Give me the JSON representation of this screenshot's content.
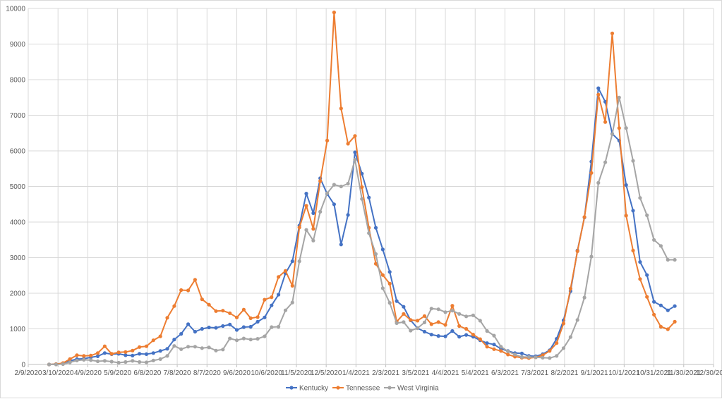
{
  "chart_data": {
    "type": "line",
    "title": "",
    "xlabel": "",
    "ylabel": "",
    "ylim": [
      0,
      10000
    ],
    "y_ticks": [
      0,
      1000,
      2000,
      3000,
      4000,
      5000,
      6000,
      7000,
      8000,
      9000,
      10000
    ],
    "x_ticks": [
      "2/9/2020",
      "3/10/2020",
      "4/9/2020",
      "5/9/2020",
      "6/8/2020",
      "7/8/2020",
      "8/7/2020",
      "9/6/2020",
      "10/6/2020",
      "11/5/2020",
      "12/5/2020",
      "1/4/2021",
      "2/3/2021",
      "3/5/2021",
      "4/4/2021",
      "5/4/2021",
      "6/3/2021",
      "7/3/2021",
      "8/2/2021",
      "9/1/2021",
      "10/1/2021",
      "10/31/2021",
      "11/30/2021",
      "12/30/2021"
    ],
    "xlim": [
      "2/9/2020",
      "12/30/2021"
    ],
    "grid": "vertical and horizontal",
    "legend_position": "bottom",
    "x_start": "3/1/2020",
    "x_step_days": 7,
    "series": [
      {
        "name": "Kentucky",
        "color": "#4472C4",
        "values": [
          0,
          10,
          30,
          100,
          150,
          160,
          200,
          230,
          320,
          290,
          300,
          260,
          250,
          300,
          290,
          320,
          380,
          440,
          700,
          860,
          1130,
          920,
          1000,
          1040,
          1030,
          1080,
          1120,
          970,
          1050,
          1060,
          1200,
          1320,
          1660,
          1960,
          2560,
          2900,
          3900,
          4800,
          4250,
          5230,
          4790,
          4500,
          3370,
          4200,
          5960,
          5360,
          4690,
          3840,
          3230,
          2600,
          1780,
          1620,
          1240,
          1020,
          920,
          840,
          800,
          790,
          940,
          780,
          830,
          780,
          680,
          600,
          560,
          440,
          380,
          320,
          310,
          240,
          230,
          290,
          400,
          720,
          1240,
          2060,
          3200,
          4130,
          5700,
          7760,
          7380,
          6480,
          6290,
          5040,
          4320,
          2880,
          2510,
          1760,
          1660,
          1520,
          1640
        ]
      },
      {
        "name": "Tennessee",
        "color": "#ED7D31",
        "values": [
          0,
          10,
          40,
          150,
          260,
          240,
          250,
          320,
          510,
          300,
          340,
          350,
          390,
          490,
          510,
          680,
          790,
          1310,
          1640,
          2090,
          2080,
          2380,
          1830,
          1680,
          1500,
          1510,
          1440,
          1320,
          1540,
          1300,
          1330,
          1820,
          1890,
          2460,
          2630,
          2210,
          3850,
          4460,
          3810,
          5150,
          6290,
          9890,
          7190,
          6200,
          6420,
          4980,
          3840,
          2830,
          2510,
          2270,
          1200,
          1420,
          1250,
          1230,
          1360,
          1130,
          1190,
          1110,
          1650,
          1080,
          1000,
          840,
          710,
          500,
          430,
          380,
          280,
          220,
          190,
          180,
          200,
          260,
          380,
          600,
          1150,
          2130,
          3180,
          4140,
          5380,
          7580,
          6810,
          9300,
          6640,
          4180,
          3200,
          2400,
          1900,
          1400,
          1060,
          990,
          1200
        ]
      },
      {
        "name": "West Virginia",
        "color": "#A5A5A5",
        "values": [
          0,
          0,
          10,
          60,
          110,
          130,
          120,
          90,
          100,
          80,
          50,
          70,
          100,
          70,
          60,
          110,
          150,
          240,
          520,
          430,
          500,
          500,
          460,
          480,
          390,
          420,
          730,
          680,
          730,
          700,
          720,
          790,
          1050,
          1060,
          1520,
          1740,
          2900,
          3780,
          3480,
          4290,
          4810,
          5050,
          5000,
          5080,
          5750,
          4650,
          3690,
          3100,
          2140,
          1730,
          1160,
          1190,
          950,
          1020,
          1180,
          1570,
          1550,
          1470,
          1510,
          1420,
          1350,
          1380,
          1230,
          940,
          810,
          500,
          370,
          280,
          210,
          210,
          200,
          190,
          180,
          240,
          460,
          770,
          1250,
          1880,
          3030,
          5100,
          5680,
          6470,
          7500,
          6640,
          5720,
          4680,
          4190,
          3500,
          3330,
          2940,
          2940
        ]
      }
    ]
  }
}
